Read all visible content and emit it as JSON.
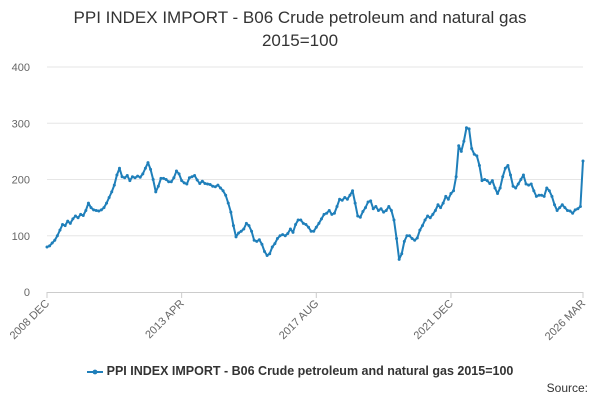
{
  "chart_data": {
    "type": "line",
    "title_line1": "PPI INDEX IMPORT - B06 Crude petroleum and natural gas",
    "title_line2": "2015=100",
    "xlabel": "",
    "ylabel": "",
    "y_ticks": [
      0,
      100,
      200,
      300,
      400
    ],
    "ylim": [
      0,
      400
    ],
    "x_ticks": [
      "2008 DEC",
      "2013 APR",
      "2017 AUG",
      "2021 DEC",
      "2026 MAR"
    ],
    "x_range": [
      "2008-12",
      "2026-03"
    ],
    "grid": "horizontal",
    "legend_position": "bottom",
    "series": [
      {
        "name": "PPI INDEX IMPORT - B06 Crude petroleum and natural gas 2015=100",
        "color": "#1f7fba",
        "points": [
          [
            "2008-12",
            80
          ],
          [
            "2009-01",
            82
          ],
          [
            "2009-02",
            87
          ],
          [
            "2009-03",
            92
          ],
          [
            "2009-04",
            100
          ],
          [
            "2009-05",
            110
          ],
          [
            "2009-06",
            120
          ],
          [
            "2009-07",
            118
          ],
          [
            "2009-08",
            126
          ],
          [
            "2009-09",
            122
          ],
          [
            "2009-10",
            130
          ],
          [
            "2009-11",
            135
          ],
          [
            "2009-12",
            132
          ],
          [
            "2010-01",
            138
          ],
          [
            "2010-02",
            136
          ],
          [
            "2010-03",
            145
          ],
          [
            "2010-04",
            158
          ],
          [
            "2010-05",
            150
          ],
          [
            "2010-06",
            146
          ],
          [
            "2010-07",
            145
          ],
          [
            "2010-08",
            144
          ],
          [
            "2010-09",
            146
          ],
          [
            "2010-10",
            150
          ],
          [
            "2010-11",
            158
          ],
          [
            "2010-12",
            168
          ],
          [
            "2011-01",
            178
          ],
          [
            "2011-02",
            190
          ],
          [
            "2011-03",
            208
          ],
          [
            "2011-04",
            220
          ],
          [
            "2011-05",
            205
          ],
          [
            "2011-06",
            203
          ],
          [
            "2011-07",
            207
          ],
          [
            "2011-08",
            198
          ],
          [
            "2011-09",
            205
          ],
          [
            "2011-10",
            203
          ],
          [
            "2011-11",
            206
          ],
          [
            "2011-12",
            204
          ],
          [
            "2012-01",
            210
          ],
          [
            "2012-02",
            220
          ],
          [
            "2012-03",
            230
          ],
          [
            "2012-04",
            218
          ],
          [
            "2012-05",
            200
          ],
          [
            "2012-06",
            178
          ],
          [
            "2012-07",
            188
          ],
          [
            "2012-08",
            202
          ],
          [
            "2012-09",
            202
          ],
          [
            "2012-10",
            200
          ],
          [
            "2012-11",
            196
          ],
          [
            "2012-12",
            196
          ],
          [
            "2013-01",
            203
          ],
          [
            "2013-02",
            215
          ],
          [
            "2013-03",
            210
          ],
          [
            "2013-04",
            198
          ],
          [
            "2013-05",
            194
          ],
          [
            "2013-06",
            192
          ],
          [
            "2013-07",
            203
          ],
          [
            "2013-08",
            205
          ],
          [
            "2013-09",
            207
          ],
          [
            "2013-10",
            199
          ],
          [
            "2013-11",
            193
          ],
          [
            "2013-12",
            197
          ],
          [
            "2014-01",
            193
          ],
          [
            "2014-02",
            192
          ],
          [
            "2014-03",
            191
          ],
          [
            "2014-04",
            188
          ],
          [
            "2014-05",
            187
          ],
          [
            "2014-06",
            190
          ],
          [
            "2014-07",
            185
          ],
          [
            "2014-08",
            180
          ],
          [
            "2014-09",
            172
          ],
          [
            "2014-10",
            158
          ],
          [
            "2014-11",
            142
          ],
          [
            "2014-12",
            118
          ],
          [
            "2015-01",
            98
          ],
          [
            "2015-02",
            105
          ],
          [
            "2015-03",
            108
          ],
          [
            "2015-04",
            112
          ],
          [
            "2015-05",
            122
          ],
          [
            "2015-06",
            118
          ],
          [
            "2015-07",
            108
          ],
          [
            "2015-08",
            92
          ],
          [
            "2015-09",
            90
          ],
          [
            "2015-10",
            93
          ],
          [
            "2015-11",
            85
          ],
          [
            "2015-12",
            72
          ],
          [
            "2016-01",
            65
          ],
          [
            "2016-02",
            68
          ],
          [
            "2016-03",
            80
          ],
          [
            "2016-04",
            86
          ],
          [
            "2016-05",
            95
          ],
          [
            "2016-06",
            100
          ],
          [
            "2016-07",
            102
          ],
          [
            "2016-08",
            100
          ],
          [
            "2016-09",
            104
          ],
          [
            "2016-10",
            112
          ],
          [
            "2016-11",
            106
          ],
          [
            "2016-12",
            120
          ],
          [
            "2017-01",
            128
          ],
          [
            "2017-02",
            128
          ],
          [
            "2017-03",
            122
          ],
          [
            "2017-04",
            120
          ],
          [
            "2017-05",
            115
          ],
          [
            "2017-06",
            108
          ],
          [
            "2017-07",
            108
          ],
          [
            "2017-08",
            115
          ],
          [
            "2017-09",
            122
          ],
          [
            "2017-10",
            130
          ],
          [
            "2017-11",
            138
          ],
          [
            "2017-12",
            140
          ],
          [
            "2018-01",
            145
          ],
          [
            "2018-02",
            138
          ],
          [
            "2018-03",
            140
          ],
          [
            "2018-04",
            152
          ],
          [
            "2018-05",
            165
          ],
          [
            "2018-06",
            163
          ],
          [
            "2018-07",
            168
          ],
          [
            "2018-08",
            165
          ],
          [
            "2018-09",
            172
          ],
          [
            "2018-10",
            180
          ],
          [
            "2018-11",
            158
          ],
          [
            "2018-12",
            135
          ],
          [
            "2019-01",
            133
          ],
          [
            "2019-02",
            143
          ],
          [
            "2019-03",
            150
          ],
          [
            "2019-04",
            160
          ],
          [
            "2019-05",
            162
          ],
          [
            "2019-06",
            148
          ],
          [
            "2019-07",
            152
          ],
          [
            "2019-08",
            145
          ],
          [
            "2019-09",
            148
          ],
          [
            "2019-10",
            142
          ],
          [
            "2019-11",
            145
          ],
          [
            "2019-12",
            152
          ],
          [
            "2020-01",
            145
          ],
          [
            "2020-02",
            128
          ],
          [
            "2020-03",
            95
          ],
          [
            "2020-04",
            58
          ],
          [
            "2020-05",
            68
          ],
          [
            "2020-06",
            90
          ],
          [
            "2020-07",
            100
          ],
          [
            "2020-08",
            100
          ],
          [
            "2020-09",
            95
          ],
          [
            "2020-10",
            92
          ],
          [
            "2020-11",
            96
          ],
          [
            "2020-12",
            110
          ],
          [
            "2021-01",
            118
          ],
          [
            "2021-02",
            128
          ],
          [
            "2021-03",
            135
          ],
          [
            "2021-04",
            132
          ],
          [
            "2021-05",
            138
          ],
          [
            "2021-06",
            145
          ],
          [
            "2021-07",
            155
          ],
          [
            "2021-08",
            150
          ],
          [
            "2021-09",
            158
          ],
          [
            "2021-10",
            170
          ],
          [
            "2021-11",
            165
          ],
          [
            "2021-12",
            175
          ],
          [
            "2022-01",
            180
          ],
          [
            "2022-02",
            205
          ],
          [
            "2022-03",
            260
          ],
          [
            "2022-04",
            250
          ],
          [
            "2022-05",
            268
          ],
          [
            "2022-06",
            292
          ],
          [
            "2022-07",
            290
          ],
          [
            "2022-08",
            255
          ],
          [
            "2022-09",
            245
          ],
          [
            "2022-10",
            242
          ],
          [
            "2022-11",
            225
          ],
          [
            "2022-12",
            198
          ],
          [
            "2023-01",
            200
          ],
          [
            "2023-02",
            198
          ],
          [
            "2023-03",
            193
          ],
          [
            "2023-04",
            198
          ],
          [
            "2023-05",
            185
          ],
          [
            "2023-06",
            175
          ],
          [
            "2023-07",
            185
          ],
          [
            "2023-08",
            205
          ],
          [
            "2023-09",
            220
          ],
          [
            "2023-10",
            225
          ],
          [
            "2023-11",
            208
          ],
          [
            "2023-12",
            188
          ],
          [
            "2024-01",
            185
          ],
          [
            "2024-02",
            192
          ],
          [
            "2024-03",
            200
          ],
          [
            "2024-04",
            208
          ],
          [
            "2024-05",
            192
          ],
          [
            "2024-06",
            190
          ],
          [
            "2024-07",
            192
          ],
          [
            "2024-08",
            180
          ],
          [
            "2024-09",
            170
          ],
          [
            "2024-10",
            172
          ],
          [
            "2024-11",
            172
          ],
          [
            "2024-12",
            170
          ],
          [
            "2025-01",
            185
          ],
          [
            "2025-02",
            180
          ],
          [
            "2025-03",
            170
          ],
          [
            "2025-04",
            155
          ],
          [
            "2025-05",
            145
          ],
          [
            "2025-06",
            150
          ],
          [
            "2025-07",
            155
          ],
          [
            "2025-08",
            150
          ],
          [
            "2025-09",
            145
          ],
          [
            "2025-10",
            144
          ],
          [
            "2025-11",
            140
          ],
          [
            "2025-12",
            146
          ],
          [
            "2026-01",
            148
          ],
          [
            "2026-02",
            152
          ],
          [
            "2026-03",
            233
          ]
        ]
      }
    ]
  },
  "footer": {
    "source_label": "Source:"
  }
}
